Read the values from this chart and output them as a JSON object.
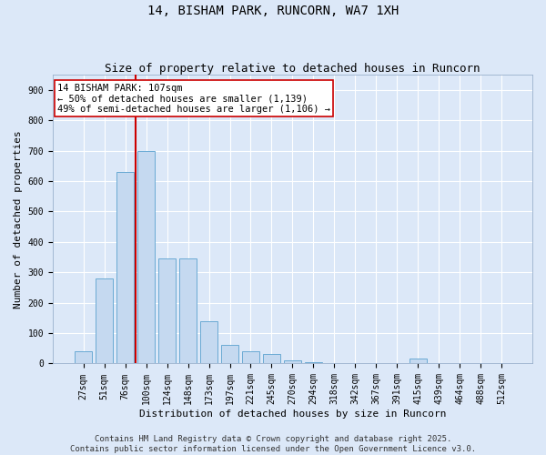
{
  "title": "14, BISHAM PARK, RUNCORN, WA7 1XH",
  "subtitle": "Size of property relative to detached houses in Runcorn",
  "xlabel": "Distribution of detached houses by size in Runcorn",
  "ylabel": "Number of detached properties",
  "bar_color": "#c5d9f0",
  "bar_edge_color": "#6aaad4",
  "background_color": "#dce8f8",
  "grid_color": "#ffffff",
  "categories": [
    "27sqm",
    "51sqm",
    "76sqm",
    "100sqm",
    "124sqm",
    "148sqm",
    "173sqm",
    "197sqm",
    "221sqm",
    "245sqm",
    "270sqm",
    "294sqm",
    "318sqm",
    "342sqm",
    "367sqm",
    "391sqm",
    "415sqm",
    "439sqm",
    "464sqm",
    "488sqm",
    "512sqm"
  ],
  "values": [
    40,
    280,
    630,
    700,
    345,
    345,
    140,
    60,
    40,
    30,
    10,
    5,
    0,
    0,
    0,
    0,
    15,
    0,
    0,
    0,
    0
  ],
  "ylim": [
    0,
    950
  ],
  "yticks": [
    0,
    100,
    200,
    300,
    400,
    500,
    600,
    700,
    800,
    900
  ],
  "vline_x": 2.5,
  "vline_color": "#cc0000",
  "annotation_text": "14 BISHAM PARK: 107sqm\n← 50% of detached houses are smaller (1,139)\n49% of semi-detached houses are larger (1,106) →",
  "annotation_box_color": "#ffffff",
  "annotation_box_edge": "#cc0000",
  "footer_text": "Contains HM Land Registry data © Crown copyright and database right 2025.\nContains public sector information licensed under the Open Government Licence v3.0.",
  "title_fontsize": 10,
  "subtitle_fontsize": 9,
  "xlabel_fontsize": 8,
  "ylabel_fontsize": 8,
  "tick_fontsize": 7,
  "annotation_fontsize": 7.5,
  "footer_fontsize": 6.5
}
